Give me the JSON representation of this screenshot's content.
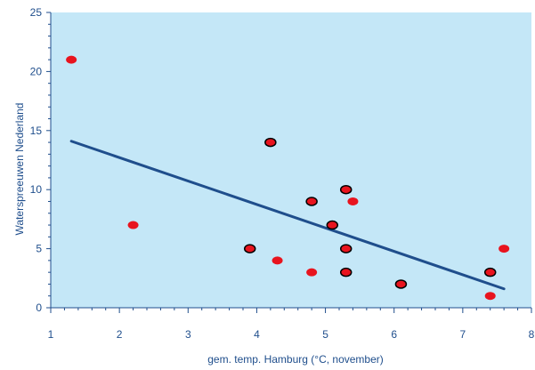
{
  "chart_data": {
    "type": "scatter",
    "title": "",
    "xlabel": "gem. temp. Hamburg (°C, november)",
    "ylabel": "Waterspreeuwen Nederland",
    "xlim": [
      1,
      8
    ],
    "ylim": [
      0,
      25
    ],
    "x_ticks": [
      "1",
      "2",
      "3",
      "4",
      "5",
      "6",
      "7",
      "8"
    ],
    "y_ticks": [
      "0",
      "5",
      "10",
      "15",
      "20",
      "25"
    ],
    "grid": false,
    "legend": "none",
    "colors": {
      "plot_background": "#c4e7f7",
      "point_fill": "#e8141e",
      "point_outline": "#000000",
      "trendline": "#1f4e8c",
      "text": "#1f4e8c"
    },
    "series": [
      {
        "style": "red-dot",
        "points": [
          {
            "x": 1.3,
            "y": 21
          },
          {
            "x": 2.2,
            "y": 7
          },
          {
            "x": 4.3,
            "y": 4
          },
          {
            "x": 4.8,
            "y": 3
          },
          {
            "x": 5.4,
            "y": 9
          },
          {
            "x": 7.4,
            "y": 1
          },
          {
            "x": 7.6,
            "y": 5
          }
        ]
      },
      {
        "style": "outlined-dot",
        "points": [
          {
            "x": 3.9,
            "y": 5
          },
          {
            "x": 4.2,
            "y": 14
          },
          {
            "x": 4.8,
            "y": 9
          },
          {
            "x": 5.1,
            "y": 7
          },
          {
            "x": 5.3,
            "y": 10
          },
          {
            "x": 5.3,
            "y": 5
          },
          {
            "x": 5.3,
            "y": 3
          },
          {
            "x": 6.1,
            "y": 2
          },
          {
            "x": 7.4,
            "y": 3
          }
        ]
      }
    ],
    "trendline": {
      "x": [
        1.3,
        7.6
      ],
      "y": [
        14.1,
        1.6
      ]
    }
  }
}
